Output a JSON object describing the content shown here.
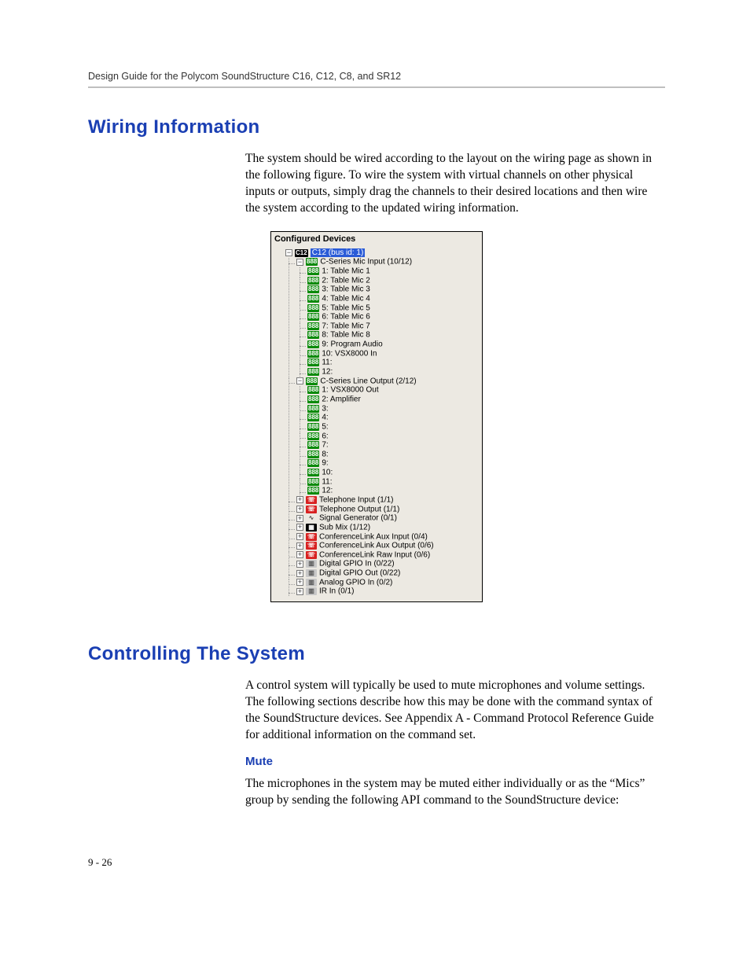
{
  "header": "Design Guide for the Polycom SoundStructure C16, C12, C8, and SR12",
  "page_number_label": "9 - 26",
  "sections": {
    "wiring": {
      "title": "Wiring Information",
      "paragraph": "The system should be wired according to the layout on the wiring page as shown in the following figure. To wire the system with virtual channels on other physical inputs or outputs, simply drag the channels to their desired locations and then wire the system according to the updated wiring information."
    },
    "controlling": {
      "title": "Controlling The System",
      "paragraph": "A control system will typically be used to mute microphones and volume settings. The following sections describe how this may be done with the command syntax of the SoundStructure devices. See Appendix A - Command Protocol Reference Guide for additional information on the command set."
    },
    "mute": {
      "title": "Mute",
      "paragraph": "The microphones in the system may be muted either individually or as the “Mics” group by sending the following API command to the SoundStructure device:"
    }
  },
  "tree": {
    "panel_title": "Configured Devices",
    "root": {
      "label": "C12 (bus id: 1)",
      "selected": true
    },
    "mic_input_group": "C-Series Mic Input (10/12)",
    "mic_inputs": [
      "1: Table Mic 1",
      "2: Table Mic 2",
      "3: Table Mic 3",
      "4: Table Mic 4",
      "5: Table Mic 5",
      "6: Table Mic 6",
      "7: Table Mic 7",
      "8: Table Mic 8",
      "9: Program Audio",
      "10: VSX8000 In",
      "11:",
      "12:"
    ],
    "line_output_group": "C-Series Line Output (2/12)",
    "line_outputs": [
      "1: VSX8000 Out",
      "2: Amplifier",
      "3:",
      "4:",
      "5:",
      "6:",
      "7:",
      "8:",
      "9:",
      "10:",
      "11:",
      "12:"
    ],
    "other_nodes": [
      {
        "icon": "tel",
        "label": "Telephone Input (1/1)"
      },
      {
        "icon": "tel",
        "label": "Telephone Output (1/1)"
      },
      {
        "icon": "sig",
        "label": "Signal Generator (0/1)"
      },
      {
        "icon": "sub",
        "label": "Sub Mix (1/12)"
      },
      {
        "icon": "clnk",
        "label": "ConferenceLink Aux Input (0/4)"
      },
      {
        "icon": "clnk",
        "label": "ConferenceLink Aux Output (0/6)"
      },
      {
        "icon": "clnk",
        "label": "ConferenceLink Raw Input (0/6)"
      },
      {
        "icon": "gpio",
        "label": "Digital GPIO In (0/22)"
      },
      {
        "icon": "gpio",
        "label": "Digital GPIO Out (0/22)"
      },
      {
        "icon": "gpio",
        "label": "Analog GPIO In (0/2)"
      },
      {
        "icon": "gpio",
        "label": "IR In (0/1)"
      }
    ]
  },
  "styling": {
    "heading_color": "#1a3fb3",
    "body_font": "Palatino/Book Antiqua serif",
    "heading_font": "Arial Narrow sans-serif",
    "panel_bg": "#ece9e2",
    "selection_bg": "#2a5bd7",
    "tree_green": "#0a8a0a",
    "tree_red": "#d82020"
  }
}
